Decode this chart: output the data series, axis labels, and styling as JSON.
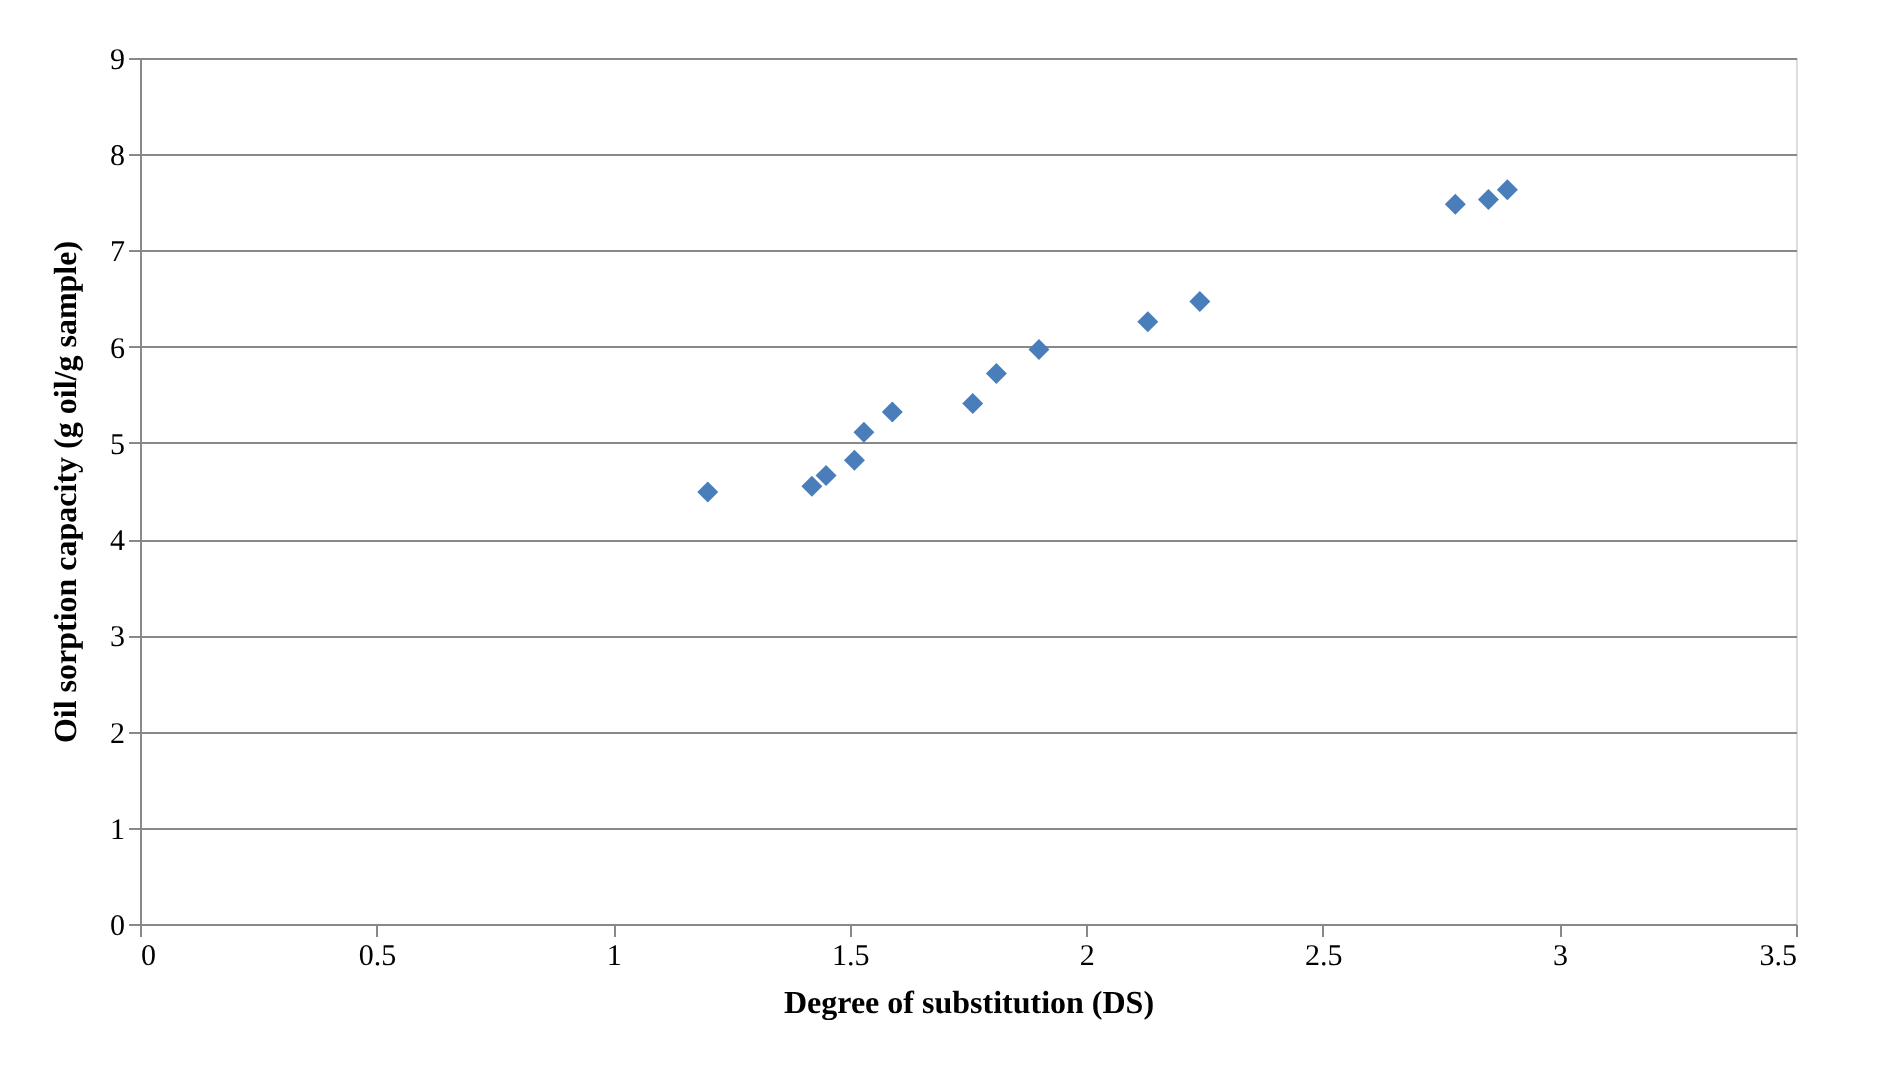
{
  "chart_data": {
    "type": "scatter",
    "xlabel": "Degree of substitution  (DS)",
    "ylabel": "Oil  sorption capacity (g oil/g sample)",
    "x": [
      1.2,
      1.42,
      1.45,
      1.51,
      1.53,
      1.59,
      1.76,
      1.81,
      1.9,
      2.13,
      2.24,
      2.78,
      2.85,
      2.89
    ],
    "series": [
      {
        "color": "#4a7ebb",
        "values": [
          4.49,
          4.55,
          4.66,
          4.82,
          5.11,
          5.32,
          5.41,
          5.72,
          5.97,
          6.26,
          6.47,
          7.48,
          7.53,
          7.63
        ]
      }
    ],
    "xlim": [
      0,
      3.5
    ],
    "xticks": [
      0,
      0.5,
      1,
      1.5,
      2,
      2.5,
      3,
      3.5
    ],
    "ylim": [
      0,
      9
    ],
    "yticks": [
      0,
      1,
      2,
      3,
      4,
      5,
      6,
      7,
      8,
      9
    ],
    "grid": "y",
    "marker": "diamond"
  }
}
